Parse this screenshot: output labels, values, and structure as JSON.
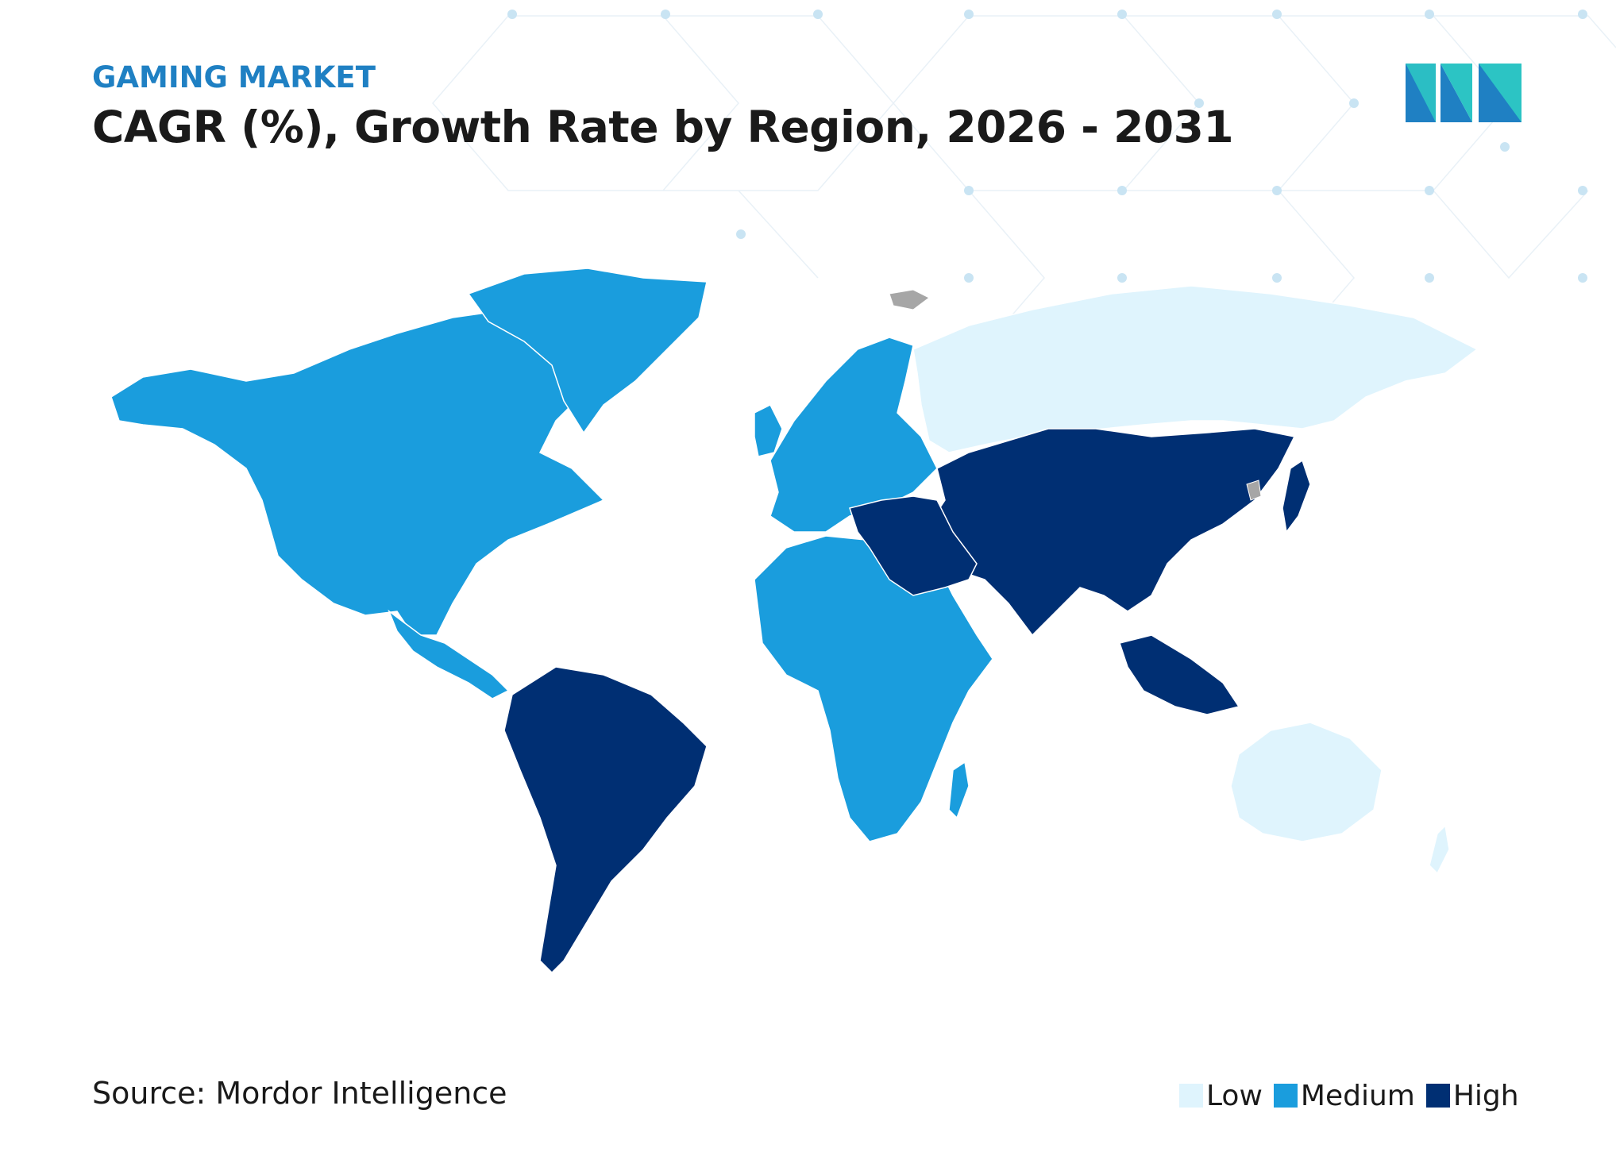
{
  "header": {
    "subtitle": "GAMING MARKET",
    "title": "CAGR (%), Growth Rate by Region, 2026 - 2031"
  },
  "footer": {
    "source": "Source: Mordor Intelligence"
  },
  "legend": [
    {
      "label": "Low",
      "color": "#dff4fd"
    },
    {
      "label": "Medium",
      "color": "#1a9ddd"
    },
    {
      "label": "High",
      "color": "#002f73"
    }
  ],
  "colors": {
    "low": "#dff4fd",
    "medium": "#1a9ddd",
    "high": "#002f73",
    "no_data": "#a6a6a6"
  },
  "map_data": {
    "type": "choropleth",
    "regions": [
      {
        "name": "North America",
        "level": "Medium"
      },
      {
        "name": "Europe",
        "level": "Medium"
      },
      {
        "name": "Africa",
        "level": "Medium"
      },
      {
        "name": "South America",
        "level": "High"
      },
      {
        "name": "Middle East",
        "level": "High"
      },
      {
        "name": "Asia",
        "level": "High"
      },
      {
        "name": "Russia",
        "level": "Low"
      },
      {
        "name": "Australia",
        "level": "Low"
      }
    ]
  }
}
